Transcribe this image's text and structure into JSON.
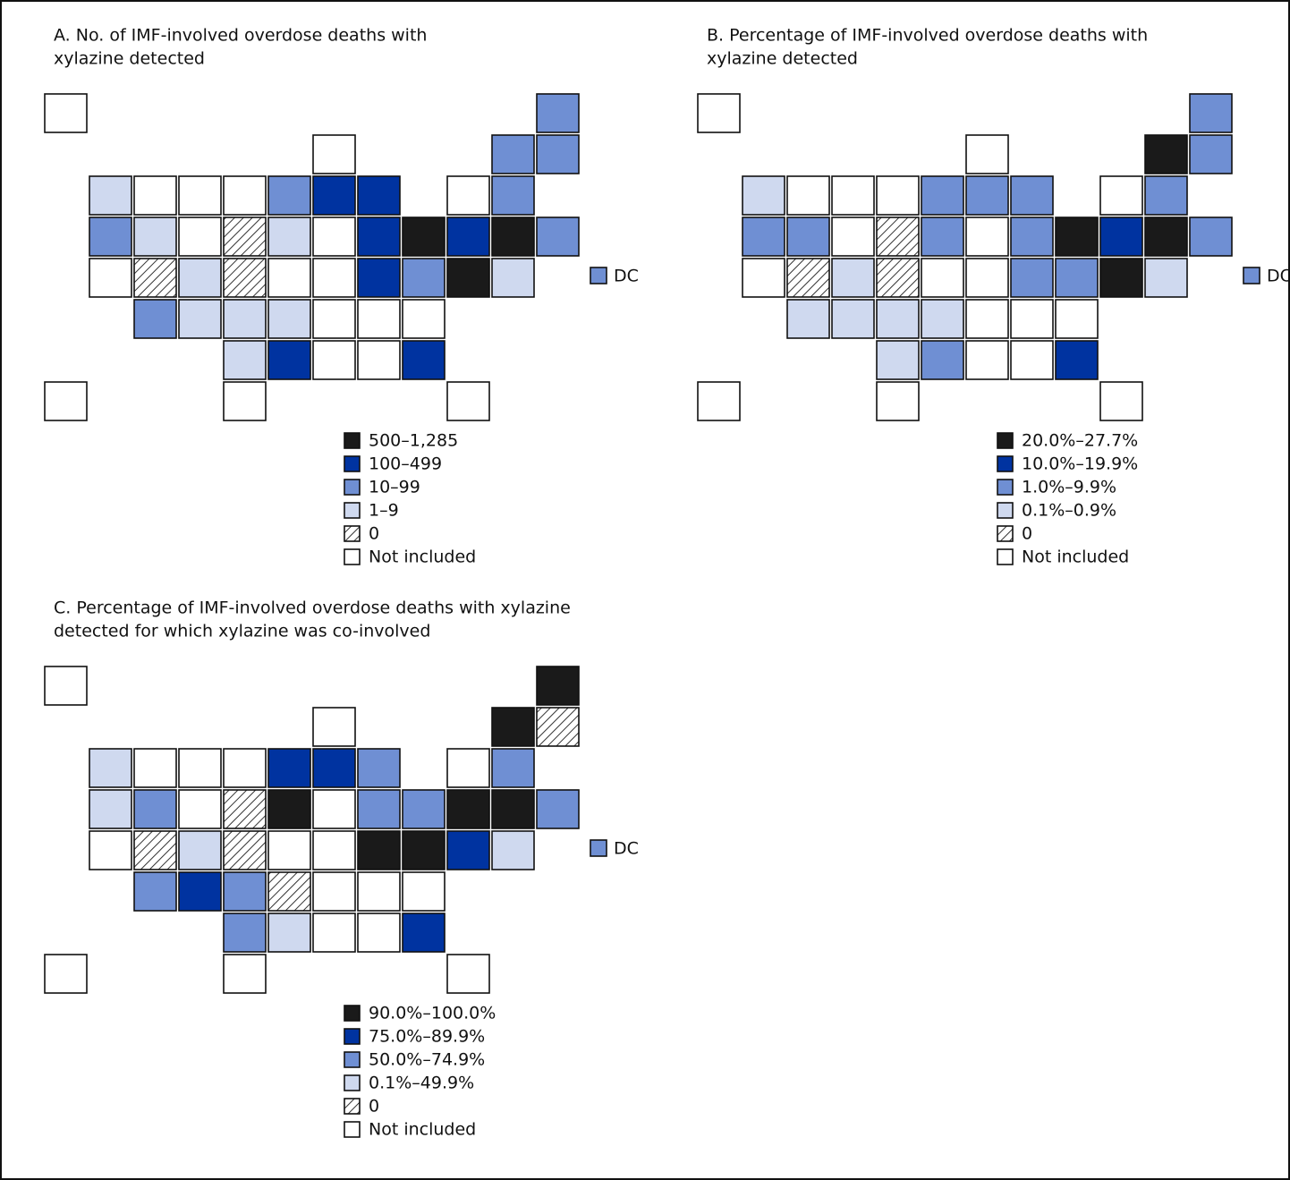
{
  "panels": [
    {
      "title_lines": [
        "A. No. of IMF-involved overdose deaths with",
        "xylazine detected"
      ],
      "legend": [
        "500–1,285",
        "100–499",
        "10–99",
        "1–9",
        "0",
        "Not included"
      ],
      "dc_label": "DC"
    },
    {
      "title_lines": [
        "B. Percentage of IMF-involved overdose deaths with",
        "xylazine detected"
      ],
      "legend": [
        "20.0%–27.7%",
        "10.0%–19.9%",
        "1.0%–9.9%",
        "0.1%–0.9%",
        "0",
        "Not included"
      ],
      "dc_label": "DC"
    },
    {
      "title_lines": [
        "C. Percentage of IMF-involved overdose deaths with xylazine",
        "detected for which xylazine was co-involved"
      ],
      "legend": [
        "90.0%–100.0%",
        "75.0%–89.9%",
        "50.0%–74.9%",
        "0.1%–49.9%",
        "0",
        "Not included"
      ],
      "dc_label": "DC"
    }
  ],
  "class_colors": [
    "#1a1a1a",
    "#0033a0",
    "#6f8fd3",
    "#cfd9ef",
    "hatch",
    "#ffffff"
  ]
}
